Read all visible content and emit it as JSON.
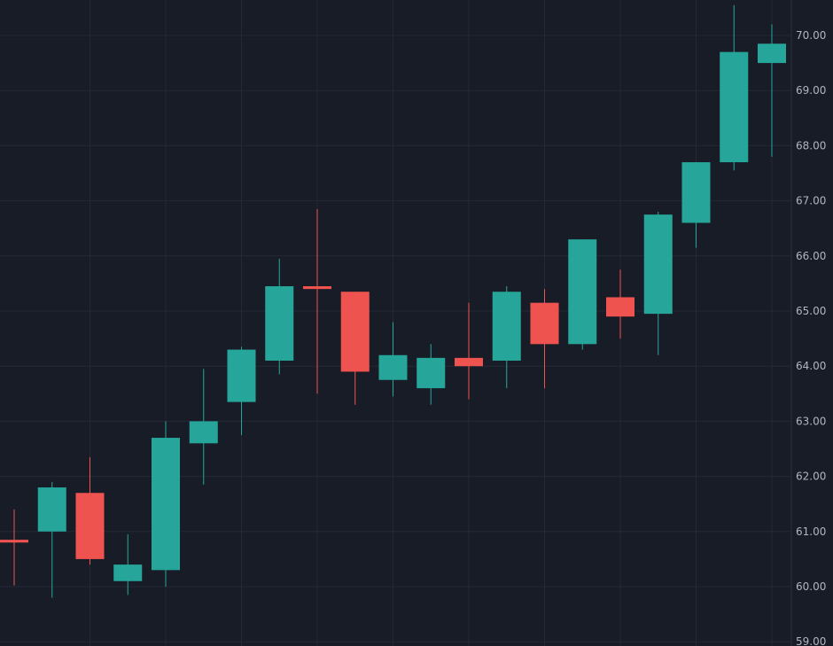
{
  "chart_data": {
    "type": "candlestick",
    "title": "",
    "xlabel": "",
    "ylabel": "",
    "ylim": [
      59.0,
      70.5
    ],
    "y_ticks": [
      "59.00",
      "60.00",
      "61.00",
      "62.00",
      "63.00",
      "64.00",
      "65.00",
      "66.00",
      "67.00",
      "68.00",
      "69.00",
      "70.00"
    ],
    "y_tick_values": [
      59,
      60,
      61,
      62,
      63,
      64,
      65,
      66,
      67,
      68,
      69,
      70
    ],
    "grid": true,
    "colors": {
      "background": "#181c27",
      "grid": "#242937",
      "up": "#26a69a",
      "down": "#ef5350",
      "tick_text": "#b2b5be"
    },
    "candles": [
      {
        "open": 60.85,
        "high": 61.4,
        "low": 60.02,
        "close": 60.8
      },
      {
        "open": 61.0,
        "high": 61.9,
        "low": 59.8,
        "close": 61.8
      },
      {
        "open": 61.7,
        "high": 62.35,
        "low": 60.4,
        "close": 60.5
      },
      {
        "open": 60.1,
        "high": 60.95,
        "low": 59.85,
        "close": 60.4
      },
      {
        "open": 60.3,
        "high": 63.0,
        "low": 60.0,
        "close": 62.7
      },
      {
        "open": 62.6,
        "high": 63.95,
        "low": 61.85,
        "close": 63.0
      },
      {
        "open": 63.35,
        "high": 64.35,
        "low": 62.75,
        "close": 64.3
      },
      {
        "open": 64.1,
        "high": 65.95,
        "low": 63.85,
        "close": 65.45
      },
      {
        "open": 65.45,
        "high": 66.85,
        "low": 63.5,
        "close": 65.4
      },
      {
        "open": 65.35,
        "high": 65.35,
        "low": 63.3,
        "close": 63.9
      },
      {
        "open": 63.75,
        "high": 64.8,
        "low": 63.45,
        "close": 64.2
      },
      {
        "open": 63.6,
        "high": 64.4,
        "low": 63.3,
        "close": 64.15
      },
      {
        "open": 64.15,
        "high": 65.15,
        "low": 63.4,
        "close": 64.0
      },
      {
        "open": 64.1,
        "high": 65.45,
        "low": 63.6,
        "close": 65.35
      },
      {
        "open": 65.15,
        "high": 65.4,
        "low": 63.6,
        "close": 64.4
      },
      {
        "open": 64.4,
        "high": 66.3,
        "low": 64.3,
        "close": 66.3
      },
      {
        "open": 65.25,
        "high": 65.75,
        "low": 64.5,
        "close": 64.9
      },
      {
        "open": 64.95,
        "high": 66.8,
        "low": 64.2,
        "close": 66.75
      },
      {
        "open": 66.6,
        "high": 67.7,
        "low": 66.15,
        "close": 67.7
      },
      {
        "open": 67.7,
        "high": 70.55,
        "low": 67.55,
        "close": 69.7
      },
      {
        "open": 69.5,
        "high": 70.2,
        "low": 67.8,
        "close": 69.85
      }
    ]
  }
}
